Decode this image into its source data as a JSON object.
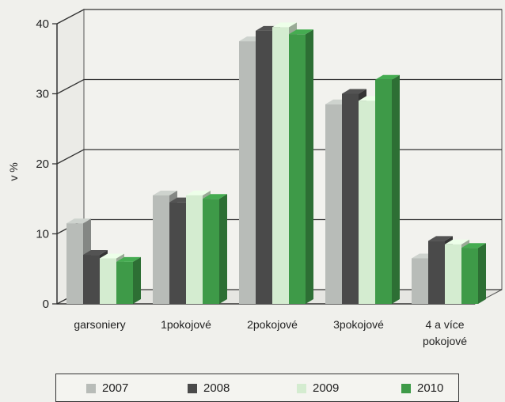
{
  "chart_data": {
    "type": "bar",
    "title": "",
    "xlabel": "",
    "ylabel": "v %",
    "ylim": [
      0,
      40
    ],
    "yticks": [
      "0",
      "10",
      "20",
      "30",
      "40"
    ],
    "categories": [
      "garsoniery",
      "1pokojové",
      "2pokojové",
      "3pokojové",
      "4 a více pokojové"
    ],
    "category_label_lines": [
      [
        "garsoniery"
      ],
      [
        "1pokojové"
      ],
      [
        "2pokojové"
      ],
      [
        "3pokojové"
      ],
      [
        "4 a více",
        "pokojové"
      ]
    ],
    "series": [
      {
        "name": "2007",
        "color": "#b8bcb8",
        "values": [
          11.5,
          15.5,
          37.5,
          28.5,
          6.5
        ]
      },
      {
        "name": "2008",
        "color": "#4a4a4a",
        "values": [
          7,
          14.5,
          39,
          30,
          9
        ]
      },
      {
        "name": "2009",
        "color": "#d4ecd0",
        "values": [
          6.5,
          15.5,
          39.5,
          29,
          8.5
        ]
      },
      {
        "name": "2010",
        "color": "#3e9a48",
        "values": [
          6,
          15,
          38.5,
          32,
          8
        ]
      }
    ],
    "grid": true,
    "legend_position": "bottom"
  }
}
